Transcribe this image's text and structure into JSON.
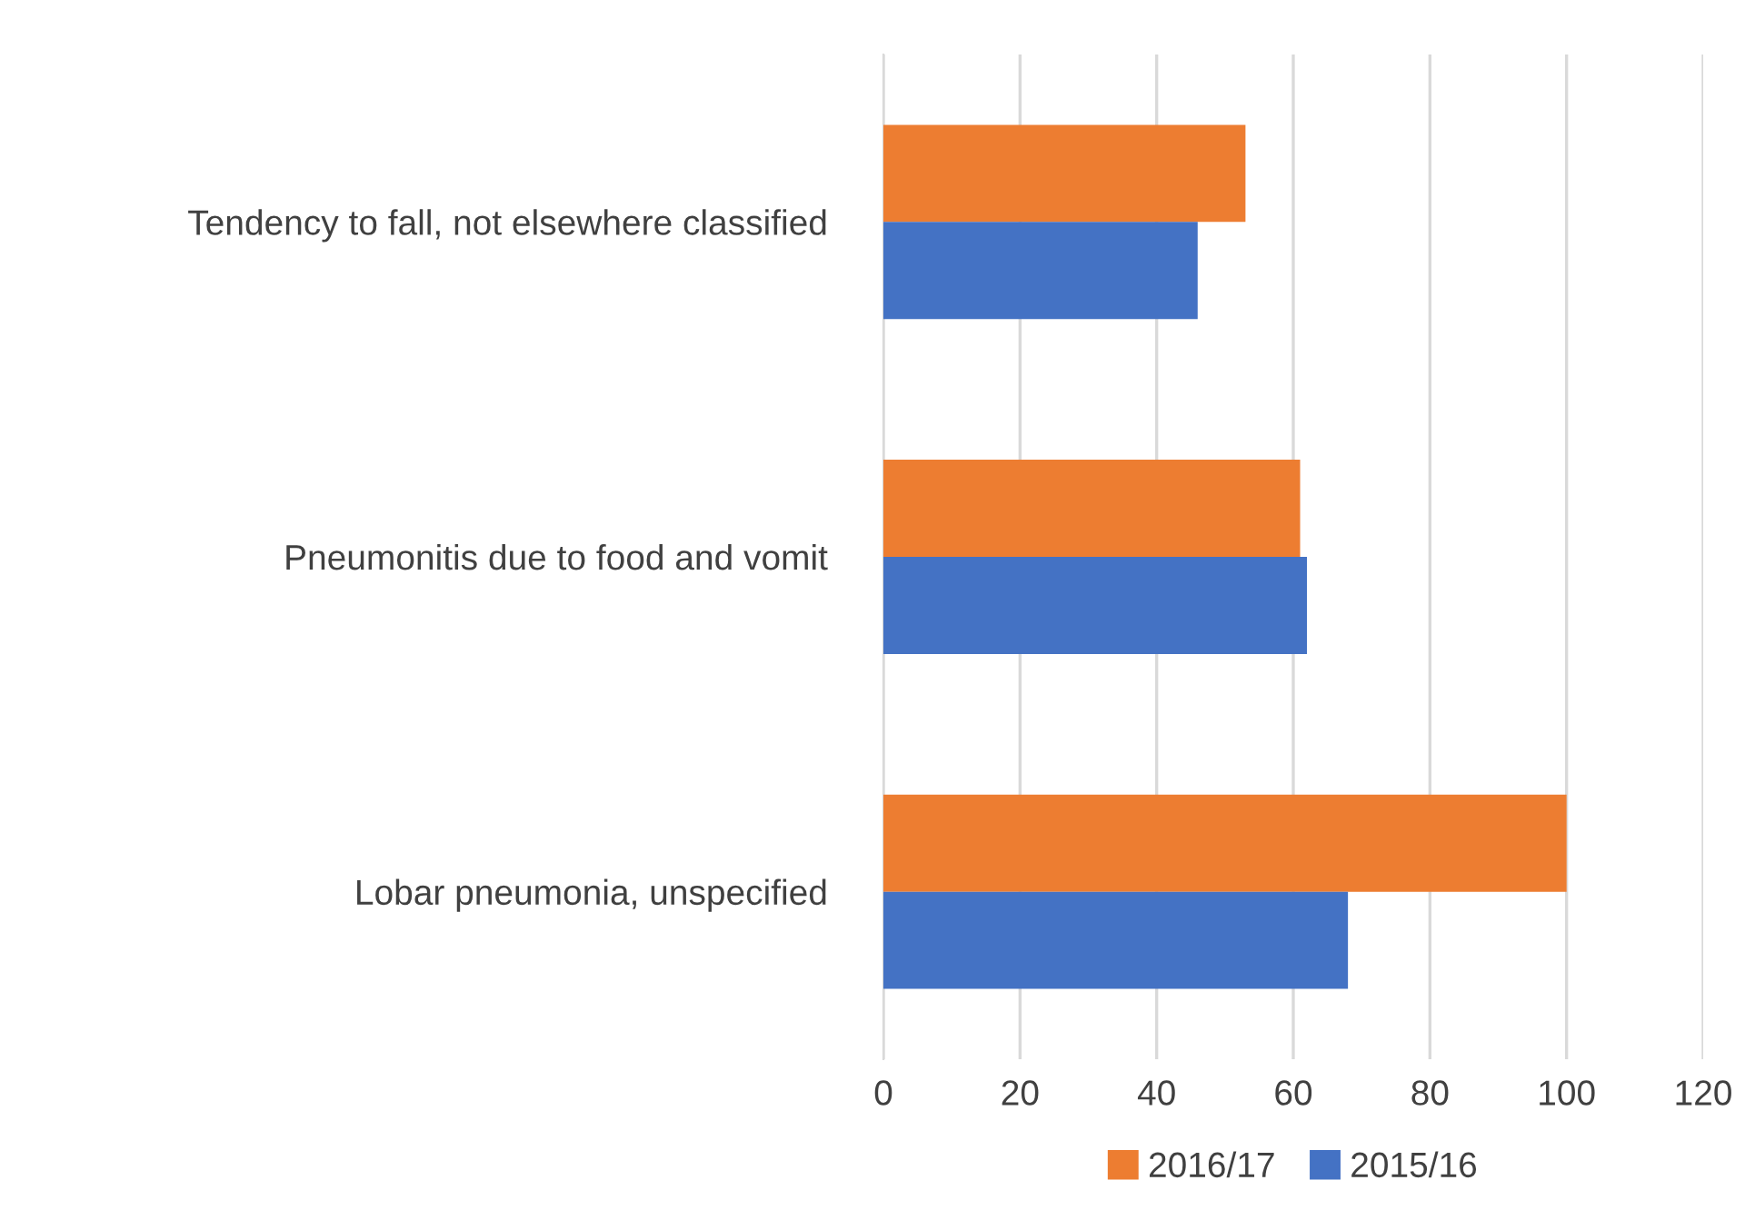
{
  "chart_data": {
    "type": "bar",
    "orientation": "horizontal",
    "categories": [
      "Tendency to fall, not elsewhere classified",
      "Pneumonitis due to food and vomit",
      "Lobar pneumonia, unspecified"
    ],
    "series": [
      {
        "name": "2016/17",
        "color": "#ed7d31",
        "values": [
          53,
          61,
          100
        ]
      },
      {
        "name": "2015/16",
        "color": "#4472c4",
        "values": [
          46,
          62,
          68
        ]
      }
    ],
    "xlim": [
      0,
      120
    ],
    "xticks": [
      0,
      20,
      40,
      60,
      80,
      100,
      120
    ],
    "grid": "x",
    "legend": "bottom"
  }
}
